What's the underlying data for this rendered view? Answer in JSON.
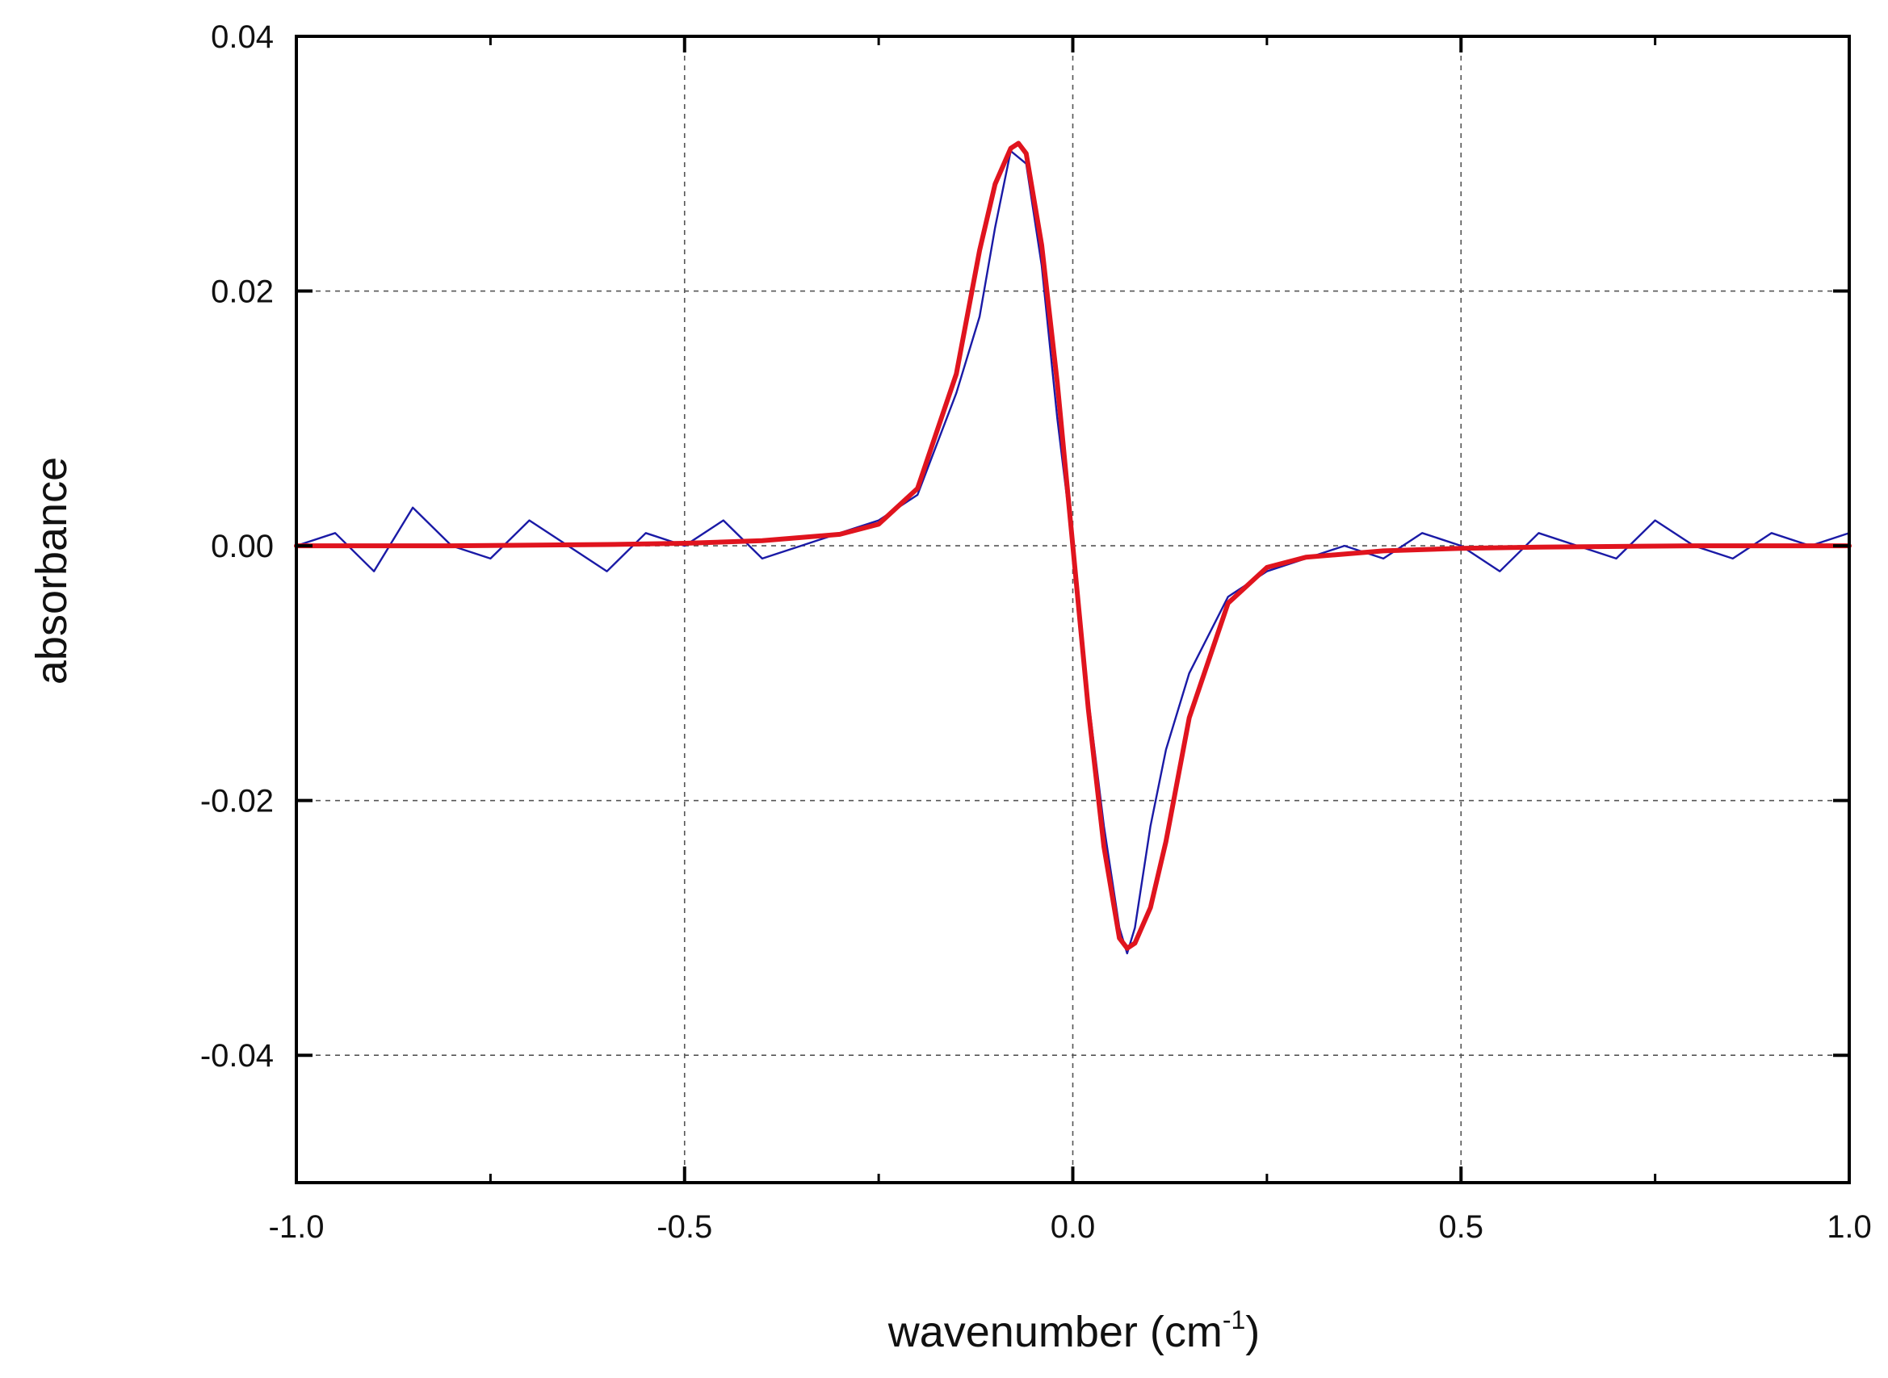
{
  "chart_data": {
    "type": "line",
    "title": "",
    "xlabel_main": "wavenumber (cm",
    "xlabel_sup": "-1",
    "xlabel_tail": ")",
    "ylabel": "absorbance",
    "xlim": [
      -1.0,
      1.0
    ],
    "ylim": [
      -0.05,
      0.04
    ],
    "x_ticks": [
      -1.0,
      -0.5,
      0.0,
      0.5,
      1.0
    ],
    "x_tick_labels": [
      "-1.0",
      "-0.5",
      "0.0",
      "0.5",
      "1.0"
    ],
    "y_ticks": [
      0.04,
      0.02,
      0.0,
      -0.02,
      -0.04
    ],
    "y_tick_labels": [
      "0.04",
      "0.02",
      "0.00",
      "-0.02",
      "-0.04"
    ],
    "grid": true,
    "legend": "none",
    "series": [
      {
        "style": "noisy",
        "color": "#1a1aa6",
        "x": [
          -1.0,
          -0.95,
          -0.9,
          -0.85,
          -0.8,
          -0.75,
          -0.7,
          -0.65,
          -0.6,
          -0.55,
          -0.5,
          -0.45,
          -0.4,
          -0.35,
          -0.3,
          -0.25,
          -0.2,
          -0.15,
          -0.12,
          -0.1,
          -0.08,
          -0.06,
          -0.04,
          -0.02,
          0.0,
          0.02,
          0.04,
          0.06,
          0.07,
          0.08,
          0.1,
          0.12,
          0.15,
          0.2,
          0.25,
          0.3,
          0.35,
          0.4,
          0.45,
          0.5,
          0.55,
          0.6,
          0.65,
          0.7,
          0.75,
          0.8,
          0.85,
          0.9,
          0.95,
          1.0
        ],
        "y": [
          0.0,
          0.001,
          -0.002,
          0.003,
          0.0,
          -0.001,
          0.002,
          0.0,
          -0.002,
          0.001,
          0.0,
          0.002,
          -0.001,
          0.0,
          0.001,
          0.002,
          0.004,
          0.012,
          0.018,
          0.025,
          0.031,
          0.03,
          0.022,
          0.01,
          0.0,
          -0.012,
          -0.022,
          -0.03,
          -0.032,
          -0.03,
          -0.022,
          -0.016,
          -0.01,
          -0.004,
          -0.002,
          -0.001,
          0.0,
          -0.001,
          0.001,
          0.0,
          -0.002,
          0.001,
          0.0,
          -0.001,
          0.002,
          0.0,
          -0.001,
          0.001,
          0.0,
          0.001
        ]
      },
      {
        "style": "fit",
        "color": "#e0141e",
        "x": [
          -1.0,
          -0.8,
          -0.6,
          -0.5,
          -0.4,
          -0.3,
          -0.25,
          -0.2,
          -0.15,
          -0.12,
          -0.1,
          -0.08,
          -0.07,
          -0.06,
          -0.04,
          -0.02,
          0.0,
          0.02,
          0.04,
          0.06,
          0.07,
          0.08,
          0.1,
          0.12,
          0.15,
          0.2,
          0.25,
          0.3,
          0.4,
          0.5,
          0.6,
          0.8,
          1.0
        ],
        "y": [
          0.0,
          0.0,
          0.0001,
          0.0002,
          0.0004,
          0.0009,
          0.0017,
          0.0045,
          0.0135,
          0.0232,
          0.0284,
          0.0312,
          0.0316,
          0.0308,
          0.0236,
          0.0128,
          0.0,
          -0.0128,
          -0.0236,
          -0.0308,
          -0.0316,
          -0.0312,
          -0.0284,
          -0.0232,
          -0.0135,
          -0.0045,
          -0.0017,
          -0.0009,
          -0.0004,
          -0.0002,
          -0.0001,
          0.0,
          0.0
        ]
      }
    ]
  }
}
